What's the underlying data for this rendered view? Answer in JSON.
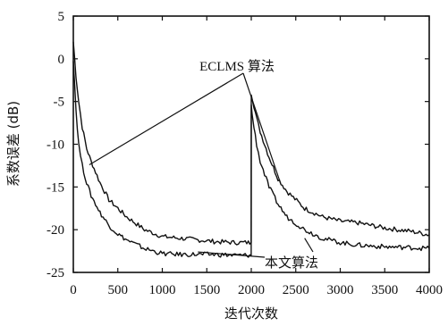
{
  "chart_data": {
    "type": "line",
    "xlabel": "迭代次数",
    "ylabel": "系数误差 (dB)",
    "xlim": [
      0,
      4000
    ],
    "ylim": [
      -25,
      5
    ],
    "x_ticks": [
      "0",
      "500",
      "1000",
      "1500",
      "2000",
      "2500",
      "3000",
      "3500",
      "4000"
    ],
    "y_ticks": [
      "5",
      "0",
      "-5",
      "-10",
      "-15",
      "-20",
      "-25"
    ],
    "grid": false,
    "series": [
      {
        "name": "ECLMS 算法",
        "x": [
          0,
          30,
          60,
          100,
          150,
          200,
          300,
          400,
          500,
          600,
          800,
          1000,
          1200,
          1400,
          1600,
          1800,
          1950,
          1999,
          2000,
          2010,
          2030,
          2060,
          2100,
          2150,
          2200,
          2300,
          2400,
          2600,
          2800,
          3000,
          3200,
          3500,
          3800,
          4000
        ],
        "y": [
          2,
          -2,
          -5,
          -8,
          -10.5,
          -12,
          -14.5,
          -16.5,
          -17.5,
          -18.5,
          -20,
          -20.8,
          -21,
          -21.2,
          -21.4,
          -21.5,
          -21.5,
          -21.5,
          -4,
          -4.5,
          -5.5,
          -7,
          -8.5,
          -10,
          -11.5,
          -14,
          -15.5,
          -17.5,
          -18.5,
          -19,
          -19.2,
          -19.8,
          -20.2,
          -20.6
        ]
      },
      {
        "name": "本文算法",
        "x": [
          0,
          30,
          60,
          100,
          150,
          200,
          300,
          400,
          500,
          600,
          800,
          1000,
          1200,
          1400,
          1600,
          1800,
          1950,
          1999,
          2000,
          2010,
          2030,
          2060,
          2100,
          2150,
          2200,
          2300,
          2400,
          2600,
          2800,
          3000,
          3200,
          3500,
          3800,
          4000
        ],
        "y": [
          0,
          -6,
          -10,
          -12.5,
          -14.5,
          -16,
          -18,
          -19.5,
          -20.5,
          -21.2,
          -22.2,
          -22.8,
          -22.9,
          -22.9,
          -22.9,
          -23,
          -23,
          -23,
          -5.5,
          -6.5,
          -8,
          -10,
          -12,
          -13.5,
          -15,
          -17,
          -18.5,
          -20,
          -21,
          -21.5,
          -21.8,
          -22,
          -22.1,
          -22.2
        ]
      }
    ],
    "annotations": [
      {
        "text": "ECLMS 算法",
        "target_series": 0
      },
      {
        "text": "本文算法",
        "target_series": 1
      }
    ]
  }
}
